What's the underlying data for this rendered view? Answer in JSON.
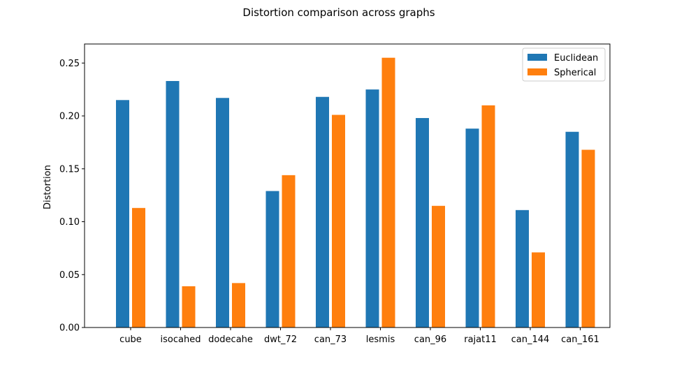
{
  "chart_data": {
    "type": "bar",
    "title": "Distortion comparison across graphs",
    "xlabel": "",
    "ylabel": "Distortion",
    "categories": [
      "cube",
      "isocahed",
      "dodecahe",
      "dwt_72",
      "can_73",
      "lesmis",
      "can_96",
      "rajat11",
      "can_144",
      "can_161"
    ],
    "series": [
      {
        "name": "Euclidean",
        "color": "#1f77b4",
        "values": [
          0.215,
          0.233,
          0.217,
          0.129,
          0.218,
          0.225,
          0.198,
          0.188,
          0.111,
          0.185
        ]
      },
      {
        "name": "Spherical",
        "color": "#ff7f0e",
        "values": [
          0.113,
          0.039,
          0.042,
          0.144,
          0.201,
          0.255,
          0.115,
          0.21,
          0.071,
          0.168
        ]
      }
    ],
    "ylim": [
      0,
      0.268
    ],
    "yticks": [
      "0.00",
      "0.05",
      "0.10",
      "0.15",
      "0.20",
      "0.25"
    ],
    "ytick_values": [
      0,
      0.05,
      0.1,
      0.15,
      0.2,
      0.25
    ],
    "grid": false,
    "legend_position": "upper right"
  }
}
